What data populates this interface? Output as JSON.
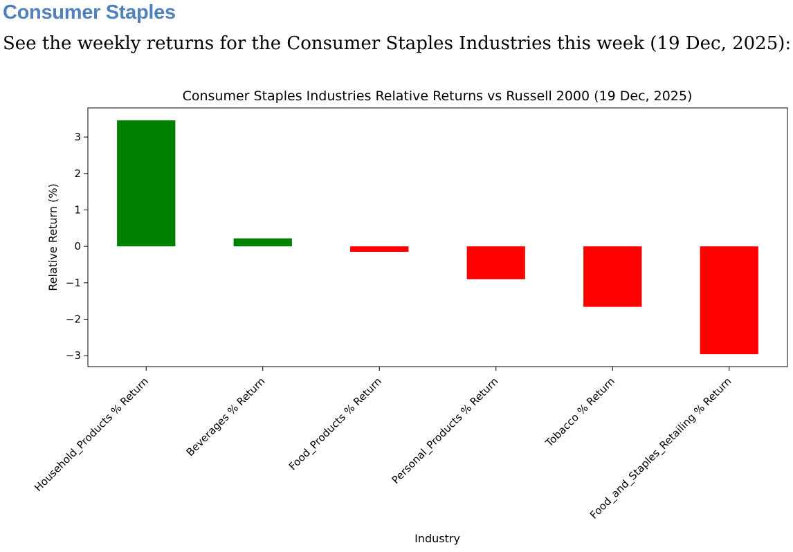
{
  "page": {
    "heading": "Consumer Staples",
    "intro": "See the weekly returns for the Consumer Staples Industries this week (19 Dec, 2025):"
  },
  "chart_data": {
    "type": "bar",
    "title": "Consumer Staples Industries Relative Returns vs Russell 2000 (19 Dec, 2025)",
    "xlabel": "Industry",
    "ylabel": "Relative Return (%)",
    "categories": [
      "Household_Products % Return",
      "Beverages % Return",
      "Food_Products % Return",
      "Personal_Products % Return",
      "Tobacco % Return",
      "Food_and_Staples_Retailing % Return"
    ],
    "values": [
      3.46,
      0.22,
      -0.15,
      -0.9,
      -1.66,
      -2.96
    ],
    "ylim": [
      -3.3,
      3.8
    ],
    "yticks": [
      -3,
      -2,
      -1,
      0,
      1,
      2,
      3
    ],
    "ytick_labels": [
      "−3",
      "−2",
      "−1",
      "0",
      "1",
      "2",
      "3"
    ],
    "colors": {
      "positive": "#008000",
      "negative": "#ff0000"
    },
    "grid": false,
    "legend": false
  }
}
